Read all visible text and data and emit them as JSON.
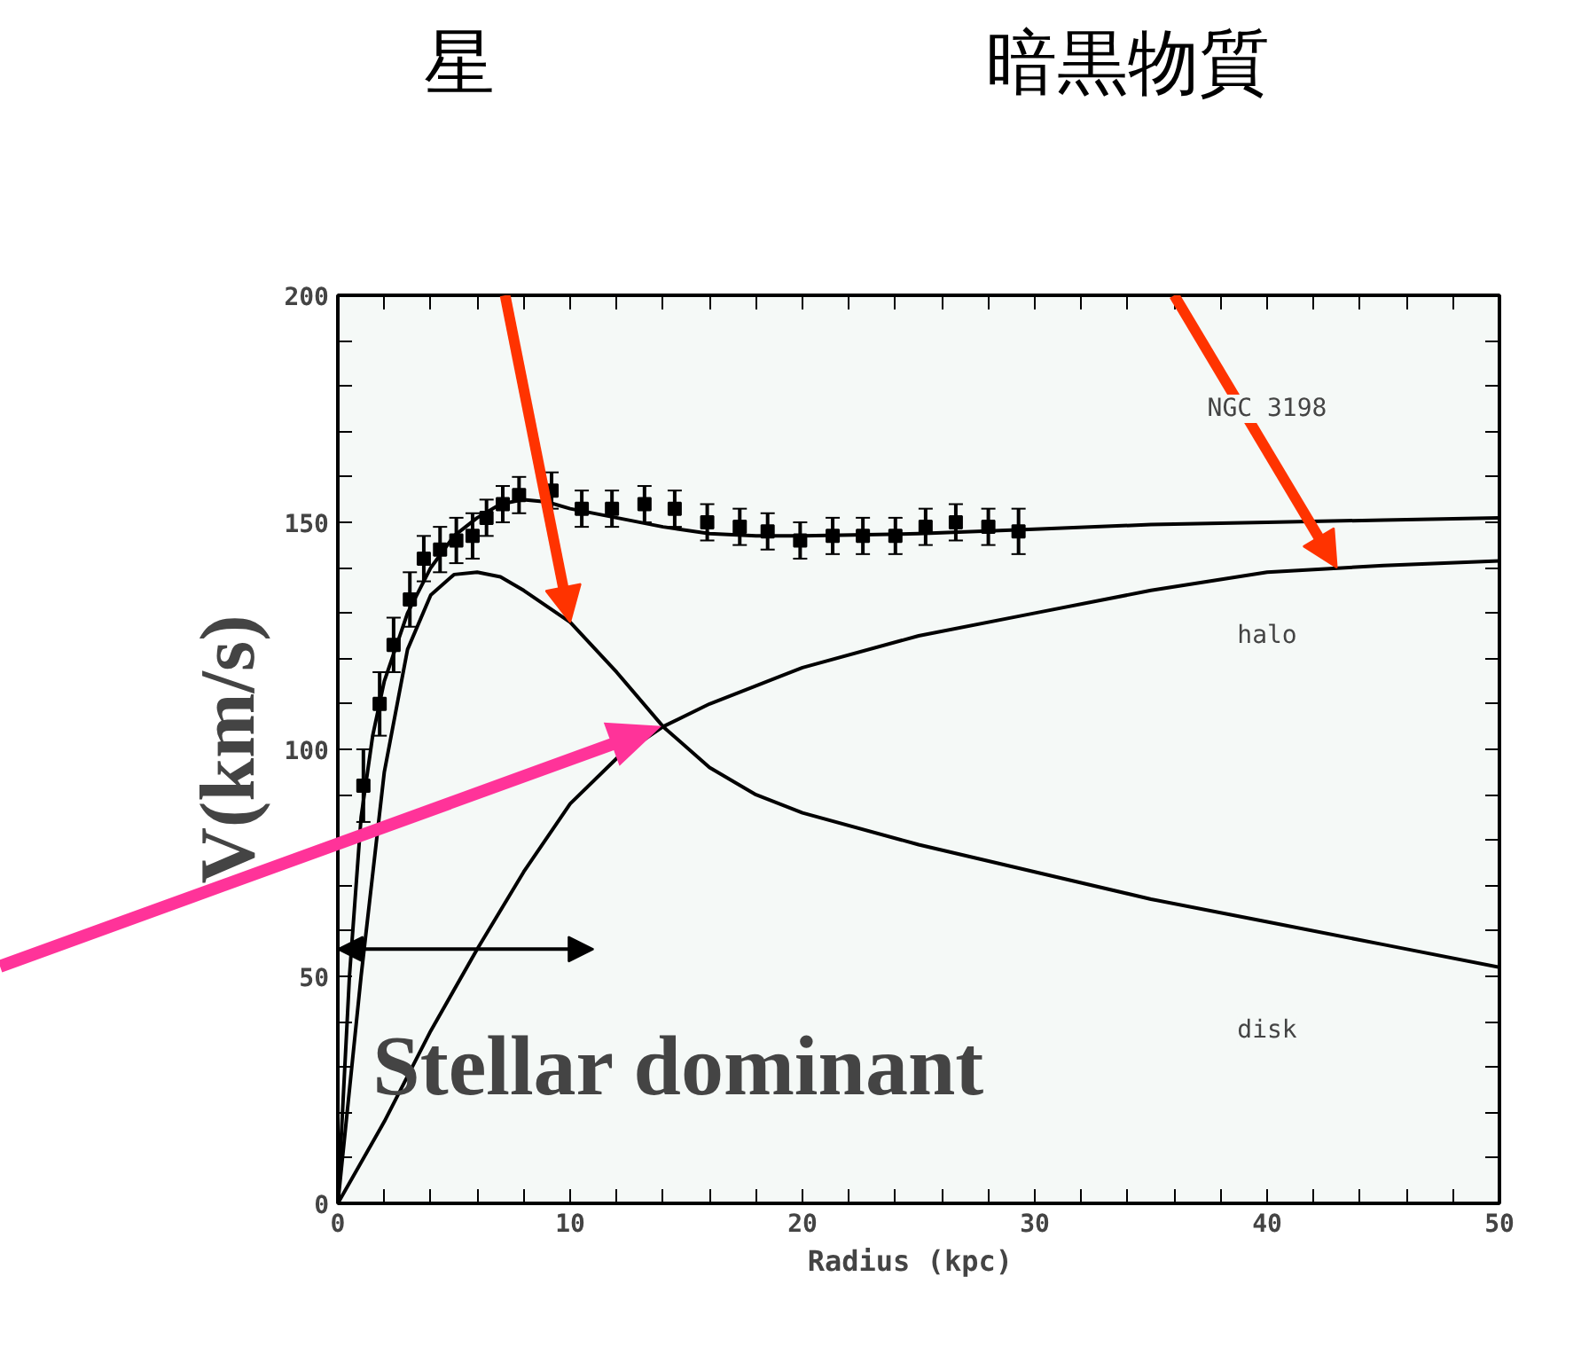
{
  "chart_data": {
    "type": "line",
    "xlabel": "Radius  (kpc)",
    "ylabel": "V(km/s)",
    "xlim": [
      0,
      50
    ],
    "ylim": [
      0,
      200
    ],
    "xticks": [
      0,
      {
        "value": 2,
        "label": null
      },
      {
        "value": 4,
        "label": null
      },
      {
        "value": 6,
        "label": null
      },
      {
        "value": 8,
        "label": null
      },
      10,
      {
        "value": 12,
        "label": null
      },
      {
        "value": 14,
        "label": null
      },
      {
        "value": 16,
        "label": null
      },
      {
        "value": 18,
        "label": null
      },
      20,
      {
        "value": 22,
        "label": null
      },
      {
        "value": 24,
        "label": null
      },
      {
        "value": 26,
        "label": null
      },
      {
        "value": 28,
        "label": null
      },
      30,
      {
        "value": 32,
        "label": null
      },
      {
        "value": 34,
        "label": null
      },
      {
        "value": 36,
        "label": null
      },
      {
        "value": 38,
        "label": null
      },
      40,
      {
        "value": 42,
        "label": null
      },
      {
        "value": 44,
        "label": null
      },
      {
        "value": 46,
        "label": null
      },
      {
        "value": 48,
        "label": null
      },
      50
    ],
    "yticks": [
      0,
      {
        "value": 10,
        "label": null
      },
      {
        "value": 20,
        "label": null
      },
      {
        "value": 30,
        "label": null
      },
      {
        "value": 40,
        "label": null
      },
      50,
      {
        "value": 60,
        "label": null
      },
      {
        "value": 70,
        "label": null
      },
      {
        "value": 80,
        "label": null
      },
      {
        "value": 90,
        "label": null
      },
      100,
      {
        "value": 110,
        "label": null
      },
      {
        "value": 120,
        "label": null
      },
      {
        "value": 130,
        "label": null
      },
      {
        "value": 140,
        "label": null
      },
      150,
      {
        "value": 160,
        "label": null
      },
      {
        "value": 170,
        "label": null
      },
      {
        "value": 180,
        "label": null
      },
      {
        "value": 190,
        "label": null
      },
      200
    ],
    "grid": false,
    "series": [
      {
        "type": "scatter",
        "marker": "square",
        "color": "#000000",
        "x": [
          1.1,
          1.8,
          2.4,
          3.1,
          3.7,
          4.4,
          5.1,
          5.8,
          6.4,
          7.1,
          7.8,
          9.2,
          10.5,
          11.8,
          13.2,
          14.5,
          15.9,
          17.3,
          18.5,
          19.9,
          21.3,
          22.6,
          24,
          25.3,
          26.6,
          28,
          29.3
        ],
        "values": [
          92,
          110,
          123,
          133,
          142,
          144,
          146,
          147,
          151,
          154,
          156,
          157,
          153,
          153,
          154,
          153,
          150,
          149,
          148,
          146,
          147,
          147,
          147,
          149,
          150,
          149,
          148
        ],
        "errors": [
          8,
          7,
          6,
          6,
          5,
          5,
          5,
          5,
          4,
          4,
          4,
          4,
          4,
          4,
          4,
          4,
          4,
          4,
          4,
          4,
          4,
          4,
          4,
          4,
          4,
          4,
          5
        ]
      },
      {
        "color": "#000000",
        "x": [
          0,
          0.5,
          1,
          1.5,
          2,
          3,
          4,
          5,
          6,
          7,
          8,
          9,
          10,
          12,
          14,
          16,
          18,
          20,
          25,
          30,
          35,
          40,
          45,
          50
        ],
        "values": [
          0,
          50,
          85,
          103,
          115,
          130,
          140,
          147,
          151,
          154,
          155,
          154.5,
          153,
          151,
          149,
          147.5,
          147,
          147,
          147.5,
          148.5,
          149.5,
          150,
          150.5,
          151
        ]
      },
      {
        "color": "#000000",
        "x": [
          0,
          1,
          2,
          3,
          4,
          5,
          6,
          7,
          8,
          10,
          12,
          14,
          16,
          18,
          20,
          25,
          30,
          35,
          40,
          45,
          50
        ],
        "values": [
          0,
          50,
          95,
          122,
          134,
          138.5,
          139,
          138,
          135,
          128,
          117,
          105,
          96,
          90,
          86,
          79,
          73,
          67,
          62,
          57,
          52
        ]
      },
      {
        "color": "#000000",
        "x": [
          0,
          2,
          4,
          6,
          8,
          10,
          12,
          14,
          16,
          18,
          20,
          25,
          30,
          35,
          40,
          45,
          50
        ],
        "values": [
          0,
          18,
          38,
          56,
          73,
          88,
          98,
          105,
          110,
          114,
          118,
          125,
          130,
          135,
          139,
          140.5,
          141.5
        ]
      }
    ],
    "annotations": [
      "NGC 3198",
      "halo",
      "disk",
      "星",
      "暗黒物質",
      "Stellar dominant"
    ]
  }
}
